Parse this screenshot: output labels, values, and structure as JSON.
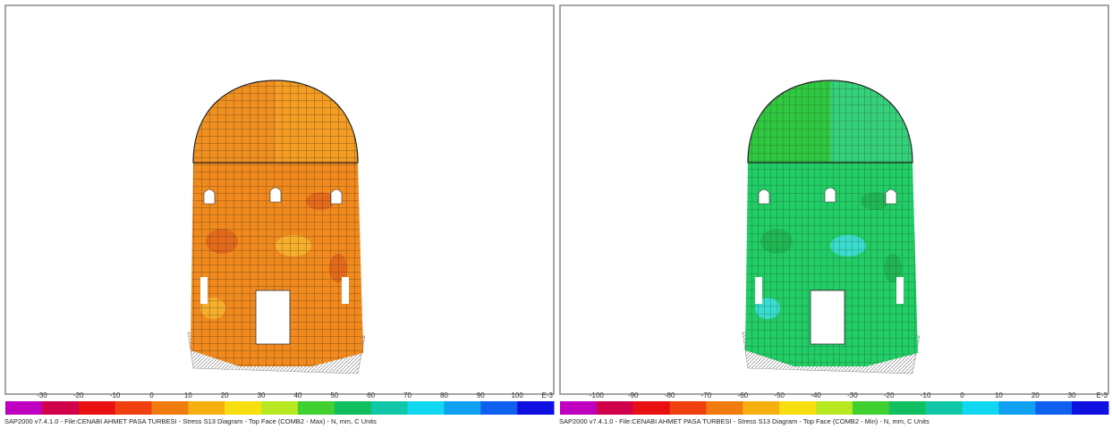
{
  "panels": [
    {
      "legend_labels": [
        "-30",
        "-20",
        "-10",
        "0",
        "10",
        "20",
        "30",
        "40",
        "50",
        "60",
        "70",
        "80",
        "90",
        "100",
        "E-3"
      ],
      "caption": "SAP2000 v7.4.1.0 - File:CENABI AHMET PASA TURBESI - Stress S13 Diagram - Top Face  (COMB2 - Max) - N, mm, C Units"
    },
    {
      "legend_labels": [
        "-100",
        "-90",
        "-80",
        "-70",
        "-60",
        "-50",
        "-40",
        "-30",
        "-20",
        "-10",
        "0",
        "10",
        "20",
        "30",
        "E-3"
      ],
      "caption": "SAP2000 v7.4.1.0 - File:CENABI AHMET PASA TURBESI - Stress S13 Diagram - Top Face  (COMB2 - Min) - N, mm, C Units"
    }
  ]
}
